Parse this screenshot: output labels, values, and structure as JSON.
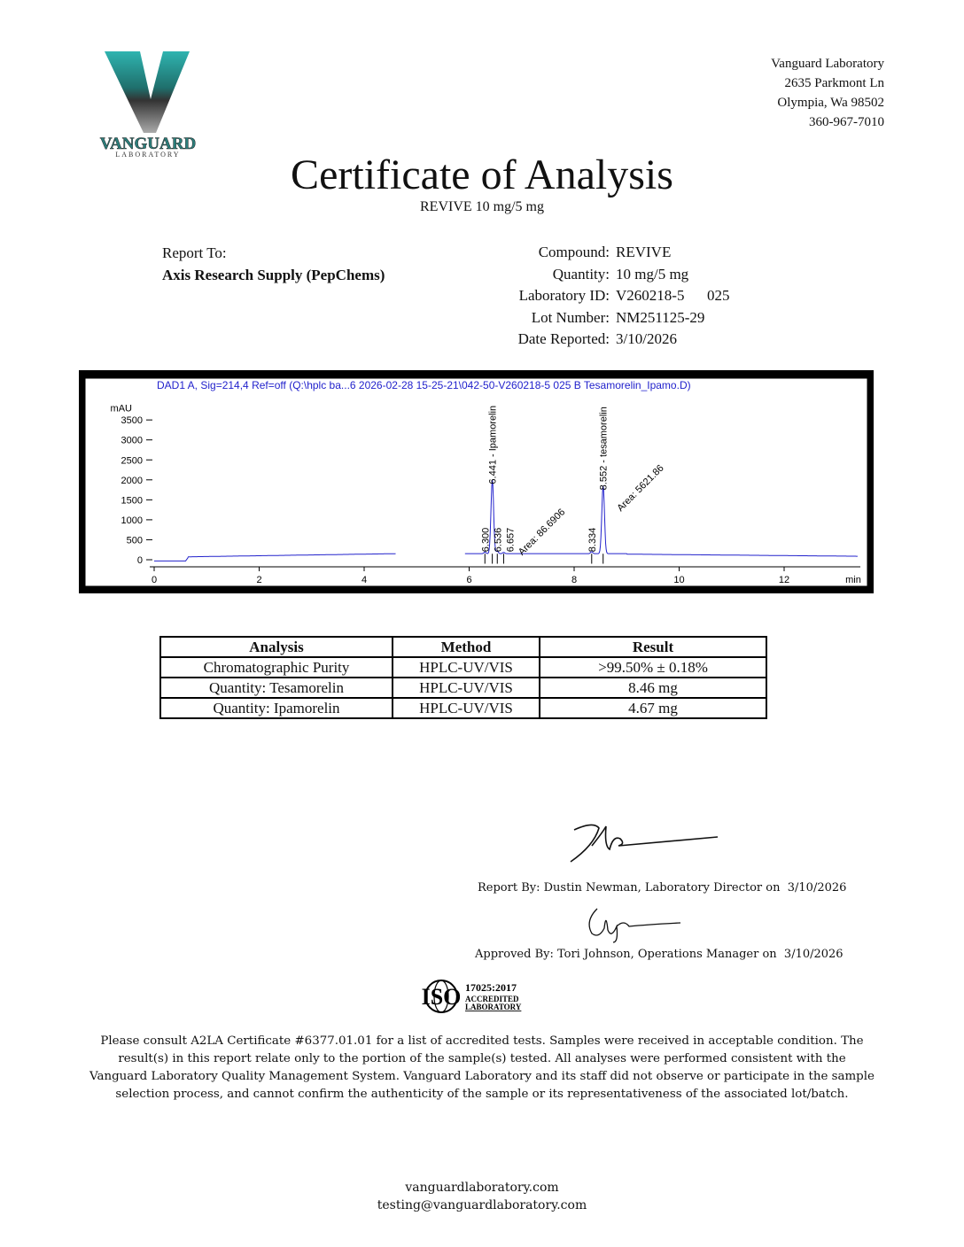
{
  "logo": {
    "text": "VANGUARD",
    "subtext": "LABORATORY",
    "colors": {
      "teal": "#2fb4b0",
      "dark": "#1b1b1b",
      "gray": "#9a9a9a"
    }
  },
  "address": {
    "name": "Vanguard Laboratory",
    "street": "2635 Parkmont Ln",
    "city": "Olympia, Wa 98502",
    "phone": "360-967-7010"
  },
  "title": "Certificate of Analysis",
  "subtitle": "REVIVE 10 mg/5 mg",
  "report_to": {
    "label": "Report To:",
    "client": "Axis Research Supply (PepChems)"
  },
  "info": [
    {
      "label": "Compound:",
      "value": "REVIVE"
    },
    {
      "label": "Quantity:",
      "value": "10 mg/5 mg"
    },
    {
      "label": "Laboratory ID:",
      "value": "V260218-5      025"
    },
    {
      "label": "Lot Number:",
      "value": "NM251125-29"
    },
    {
      "label": "Date Reported:",
      "value": "3/10/2026"
    }
  ],
  "chart_data": {
    "type": "line",
    "title": "DAD1 A, Sig=214,4 Ref=off (Q:\\hplc ba...6 2026-02-28 15-25-21\\042-50-V260218-5 025 B Tesamorelin_Ipamo.D)",
    "ylabel": "mAU",
    "xlabel": "min",
    "xlim": [
      0,
      13.4
    ],
    "ylim": [
      -100,
      3800
    ],
    "xticks": [
      0,
      2,
      4,
      6,
      8,
      10,
      12
    ],
    "yticks": [
      0,
      500,
      1000,
      1500,
      2000,
      2500,
      3000,
      3500
    ],
    "line_color": "#2222cc",
    "title_color": "#2222cc",
    "peaks": [
      {
        "rt": 6.3,
        "height": 40,
        "label": "6.300"
      },
      {
        "rt": 6.441,
        "height": 1850,
        "label": "6.441 - Ipamorelin"
      },
      {
        "rt": 6.536,
        "height": 60,
        "label": "6.536"
      },
      {
        "rt": 6.657,
        "height": 30,
        "label": "6.657",
        "annotation": "Area: 86.6906"
      },
      {
        "rt": 8.334,
        "height": 50,
        "label": "8.334"
      },
      {
        "rt": 8.552,
        "height": 1700,
        "label": "8.552 - tesamorelin",
        "annotation": "Area: 5621.86"
      }
    ]
  },
  "table": {
    "headers": [
      "Analysis",
      "Method",
      "Result"
    ],
    "rows": [
      [
        "Chromatographic Purity",
        "HPLC-UV/VIS",
        ">99.50% ± 0.18%"
      ],
      [
        "Quantity: Tesamorelin",
        "HPLC-UV/VIS",
        "8.46 mg"
      ],
      [
        "Quantity: Ipamorelin",
        "HPLC-UV/VIS",
        "4.67 mg"
      ]
    ]
  },
  "signatures": {
    "report_by": "Report By: Dustin Newman, Laboratory Director on",
    "report_date": "3/10/2026",
    "approved_by": "Approved By: Tori Johnson, Operations Manager on",
    "approved_date": "3/10/2026"
  },
  "iso": {
    "text": "ISO",
    "line1": "17025:2017",
    "line2": "ACCREDITED",
    "line3": "LABORATORY"
  },
  "disclaimer": "Please consult A2LA Certificate #6377.01.01 for a list of accredited tests. Samples were received in acceptable condition. The result(s) in this report relate only to the portion of the sample(s) tested. All analyses were performed consistent with the Vanguard Laboratory Quality Management System. Vanguard Laboratory and its staff did not observe or participate in the sample selection process, and cannot confirm the authenticity of the sample or its representativeness of the associated lot/batch.",
  "footer": {
    "website": "vanguardlaboratory.com",
    "email": "testing@vanguardlaboratory.com"
  }
}
